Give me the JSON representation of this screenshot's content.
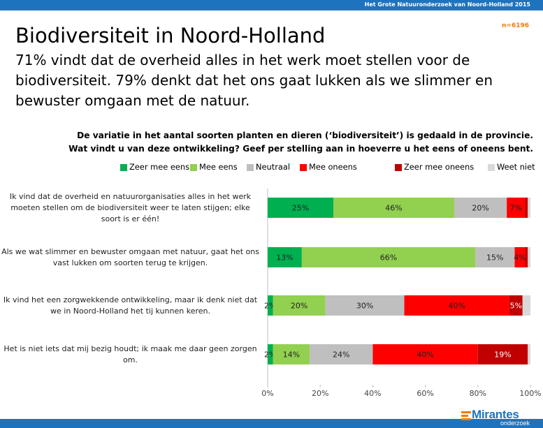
{
  "header": {
    "survey_name": "Het Grote Natuuronderzoek van Noord-Holland 2015",
    "title": "Biodiversiteit in Noord-Holland",
    "sample_size": "n=6196",
    "subtitle": "71% vindt dat de overheid alles in het werk moet stellen voor de biodiversiteit. 79% denkt dat het ons gaat lukken als we slimmer en bewuster omgaan met de natuur.",
    "question_line1": "De variatie in het aantal soorten planten en dieren (‘biodiversiteit’) is gedaald in de provincie.",
    "question_line2": "Wat vindt u van deze ontwikkeling? Geef per stelling aan in hoeverre u het eens of oneens bent."
  },
  "colors": {
    "top_bar": "#1e73be",
    "accent": "#f07c00"
  },
  "logo": {
    "name": "Mirantes",
    "sub": "onderzoek"
  },
  "chart_data": {
    "type": "bar",
    "orientation": "horizontal",
    "stacked": true,
    "percent_stacked": true,
    "categories": [
      "Ik vind dat de overheid en natuurorganisaties alles in het werk moeten stellen om de biodiversiteit weer te laten stijgen; elke soort is er één!",
      "Als we wat slimmer en bewuster omgaan met natuur, gaat het ons vast lukken om soorten terug te krijgen.",
      "Ik vind het een zorgwekkende ontwikkeling, maar ik denk niet dat we in Noord-Holland het tij kunnen keren.",
      "Het is niet iets dat mij bezig houdt; ik maak me daar geen zorgen om."
    ],
    "series": [
      {
        "name": "Zeer mee eens",
        "color": "#00b050",
        "values": [
          25,
          13,
          2,
          2
        ]
      },
      {
        "name": "Mee eens",
        "color": "#92d050",
        "values": [
          46,
          66,
          20,
          14
        ]
      },
      {
        "name": "Neutraal",
        "color": "#bfbfbf",
        "values": [
          20,
          15,
          30,
          24
        ]
      },
      {
        "name": "Mee oneens",
        "color": "#ff0000",
        "values": [
          7,
          4,
          40,
          40
        ]
      },
      {
        "name": "Zeer mee oneens",
        "color": "#c00000",
        "values": [
          1,
          1,
          5,
          19
        ]
      },
      {
        "name": "Weet niet",
        "color": "#d9d9d9",
        "values": [
          1,
          1,
          3,
          1
        ]
      }
    ],
    "data_labels": [
      [
        "25%",
        "46%",
        "20%",
        "7%",
        "",
        ""
      ],
      [
        "13%",
        "66%",
        "15%",
        "4%",
        "",
        ""
      ],
      [
        "2%",
        "20%",
        "30%",
        "40%",
        "5%",
        ""
      ],
      [
        "2%",
        "14%",
        "24%",
        "40%",
        "19%",
        ""
      ]
    ],
    "x_ticks": [
      "0%",
      "20%",
      "40%",
      "60%",
      "80%",
      "100%"
    ],
    "xlim": [
      0,
      100
    ],
    "legend_position": "top",
    "grid": false
  }
}
